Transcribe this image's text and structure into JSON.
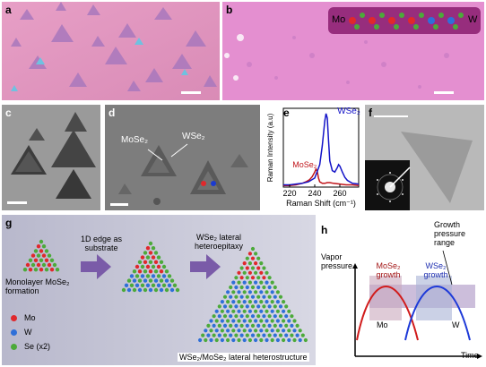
{
  "panels": {
    "a": {
      "label": "a"
    },
    "b": {
      "label": "b",
      "inset_left": "Mo",
      "inset_right": "W"
    },
    "c": {
      "label": "c"
    },
    "d": {
      "label": "d",
      "ann_mose2": "MoSe₂",
      "ann_wse2": "WSe₂"
    },
    "e": {
      "label": "e"
    },
    "f": {
      "label": "f"
    },
    "g": {
      "label": "g",
      "step1_label": "Monolayer MoSe₂ formation",
      "arrow1_label": "1D edge as substrate",
      "arrow2_label": "WSe₂ lateral heteroepitaxy",
      "final_label": "WSe₂/MoSe₂ lateral heterostructure",
      "legend": [
        {
          "label": "Mo",
          "color": "#e0282c"
        },
        {
          "label": "W",
          "color": "#2f6fd8"
        },
        {
          "label": "Se (x2)",
          "color": "#4caa3a"
        }
      ]
    },
    "h": {
      "label": "h",
      "ylabel": "Vapor pressure",
      "xlabel": "Time",
      "range_label": "Growth pressure range",
      "mose2_growth": "MoSe₂ growth",
      "wse2_growth": "WSe₂ growth",
      "mo_label": "Mo",
      "w_label": "W"
    }
  },
  "chart_data": {
    "type": "line",
    "title": "",
    "xlabel": "Raman Shift (cm⁻¹)",
    "ylabel": "Raman Intensity (a.u)",
    "xlim": [
      215,
      275
    ],
    "ylim": [
      0,
      1.05
    ],
    "xticks": [
      "220",
      "240",
      "260"
    ],
    "xtick_values": [
      220,
      240,
      260
    ],
    "series": [
      {
        "name": "MoSe₂",
        "color": "#c0141a",
        "x": [
          215,
          220,
          225,
          230,
          233,
          236,
          238,
          240,
          241,
          242,
          243,
          244,
          246,
          248,
          250,
          252,
          255,
          260,
          265,
          270,
          275
        ],
        "y": [
          0.02,
          0.02,
          0.03,
          0.05,
          0.07,
          0.1,
          0.14,
          0.2,
          0.24,
          0.21,
          0.12,
          0.07,
          0.05,
          0.05,
          0.06,
          0.06,
          0.05,
          0.04,
          0.03,
          0.03,
          0.02
        ]
      },
      {
        "name": "WSe₂",
        "color": "#1414c8",
        "x": [
          215,
          220,
          225,
          230,
          235,
          240,
          244,
          246,
          248,
          249,
          250,
          251,
          252,
          254,
          256,
          258,
          259,
          260,
          262,
          264,
          266,
          270,
          275
        ],
        "y": [
          0.03,
          0.03,
          0.04,
          0.05,
          0.07,
          0.12,
          0.3,
          0.55,
          0.88,
          0.98,
          0.92,
          0.62,
          0.35,
          0.22,
          0.2,
          0.26,
          0.3,
          0.28,
          0.2,
          0.13,
          0.09,
          0.05,
          0.04
        ]
      }
    ]
  }
}
